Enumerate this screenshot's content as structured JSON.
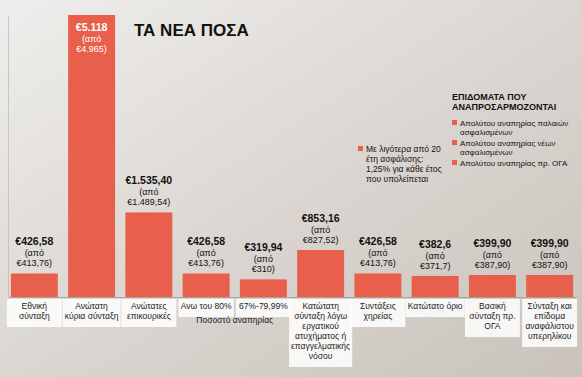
{
  "chart_data": {
    "type": "bar",
    "title": "ΤΑ ΝΕΑ ΠΟΣΑ",
    "categories": [
      "Εθνική σύνταξη",
      "Ανώτατη κύρια σύνταξη",
      "Ανώτατες επικουρικές",
      "Ανω του 80%",
      "67%-79,99%",
      "Κατώτατη σύνταξη λόγω εργατικού ατυχήματος ή επαγγελματικής νόσου",
      "Συντάξεις χηρείας",
      "Κατώτατο όριο",
      "Βασική σύνταξη πρ. ΟΓΑ",
      "Σύνταξη και επίδομα αναφάλιστου υπερηλίκου"
    ],
    "values": [
      426.58,
      5118,
      1535.4,
      426.58,
      319.94,
      853.16,
      426.58,
      382.6,
      399.9,
      399.9
    ],
    "value_labels": [
      "€426,58",
      "€5.118",
      "€1.535,40",
      "€426,58",
      "€319,94",
      "€853,16",
      "€426,58",
      "€382,6",
      "€399,90",
      "€399,90"
    ],
    "previous_values": [
      413.76,
      4965,
      1489.54,
      413.76,
      310,
      827.52,
      413.76,
      371.7,
      387.9,
      387.9
    ],
    "previous_value_labels": [
      "(από €413,76)",
      "(από €4.965)",
      "(από €1.489,54)",
      "(από €413,76)",
      "(από €310)",
      "(από €827,52)",
      "(από €413,76)",
      "(από €371,7)",
      "(από €387,90)",
      "(από €387,90)"
    ],
    "color": "#e8604c",
    "ylim": [
      0,
      5118
    ],
    "yticks": [],
    "tick_labels": "x",
    "data_labels": true,
    "category_groups": [
      {
        "label": "Ποσοστό αναπηρίας",
        "start": 3,
        "end": 4
      }
    ],
    "annotations": [
      {
        "text": "Με λιγότερα από 20 έτη ασφάλισης: 1,25% για κάθε έτος που υπολείπεται"
      }
    ],
    "info_box": {
      "title": "ΕΠΙΔΟΜΑΤΑ ΠΟΥ ΑΝΑΠΡΟΣΑΡΜΟΖΟΝΤΑΙ",
      "items": [
        "Απολύτου αναπηρίας παλαιών ασφαλισμένων",
        "Απολύτου αναπηρίας νέων ασφαλισμένων",
        "Απολύτου αναπηρίας πρ. ΟΓΑ"
      ]
    }
  }
}
